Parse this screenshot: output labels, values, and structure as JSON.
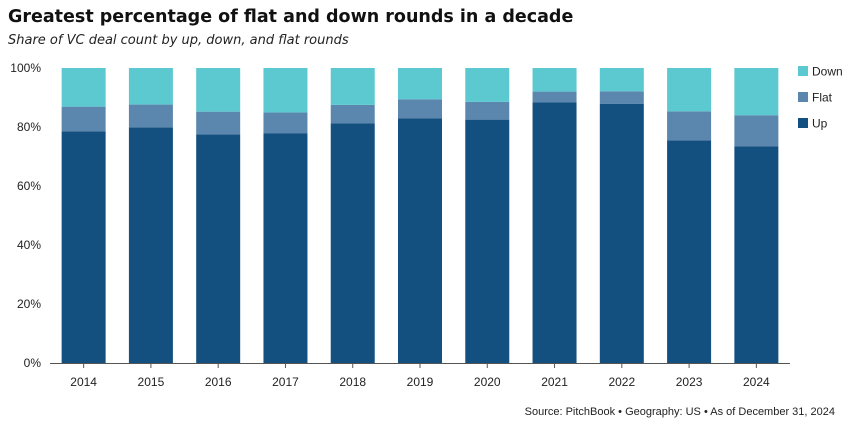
{
  "chart_data": {
    "type": "bar",
    "stacked": true,
    "title": "Greatest percentage of flat and down rounds in a decade",
    "subtitle": "Share of VC deal count by up, down, and flat rounds",
    "categories": [
      "2014",
      "2015",
      "2016",
      "2017",
      "2018",
      "2019",
      "2020",
      "2021",
      "2022",
      "2023",
      "2024"
    ],
    "series": [
      {
        "name": "Up",
        "color": "#13507f",
        "values": [
          78.5,
          79.9,
          77.5,
          77.8,
          81.2,
          82.9,
          82.5,
          88.3,
          87.9,
          75.5,
          73.4
        ]
      },
      {
        "name": "Flat",
        "color": "#5b86ad",
        "values": [
          8.4,
          7.7,
          7.7,
          7.1,
          6.3,
          6.5,
          6.0,
          3.7,
          4.2,
          9.8,
          10.6
        ]
      },
      {
        "name": "Down",
        "color": "#5cc8cf",
        "values": [
          13.1,
          12.4,
          14.8,
          15.1,
          12.5,
          10.6,
          11.5,
          8.0,
          7.9,
          14.7,
          16.0
        ]
      }
    ],
    "ylim": [
      0,
      100
    ],
    "yticks": [
      {
        "value": 0,
        "label": "0%"
      },
      {
        "value": 20,
        "label": "20%"
      },
      {
        "value": 40,
        "label": "40%"
      },
      {
        "value": 60,
        "label": "60%"
      },
      {
        "value": 80,
        "label": "80%"
      },
      {
        "value": 100,
        "label": "100%"
      }
    ],
    "legend": {
      "position": "right",
      "order": [
        "Down",
        "Flat",
        "Up"
      ]
    },
    "grid": false
  },
  "source": "Source: PitchBook  •  Geography: US  •  As of December 31, 2024"
}
